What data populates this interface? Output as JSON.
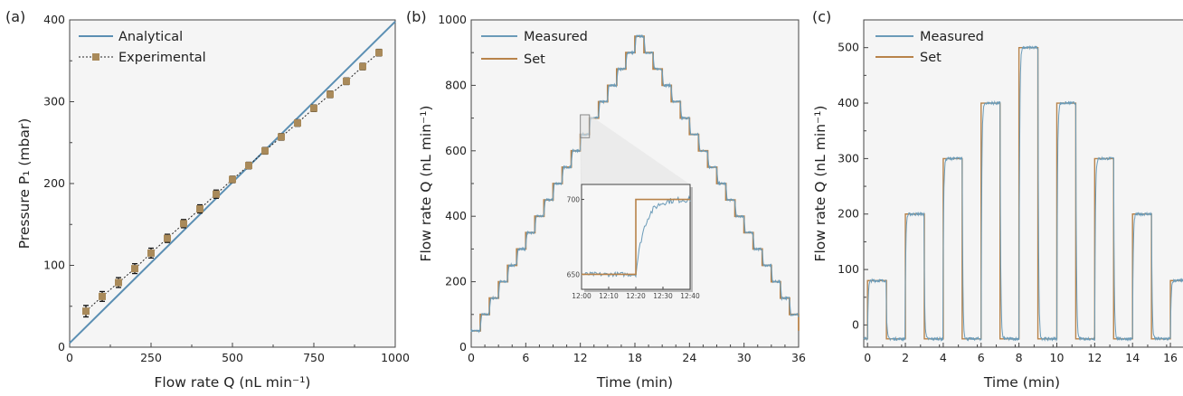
{
  "figure": {
    "panels": [
      "(a)",
      "(b)",
      "(c)"
    ]
  },
  "colors": {
    "analytical": "#5b8fb3",
    "measured": "#6b9bb8",
    "set": "#b8834a",
    "experimental_marker": "#a98a5a",
    "background": "#f5f5f5"
  },
  "chart_data": [
    {
      "panel": "(a)",
      "type": "line",
      "xlabel": "Flow rate Q  (nL min⁻¹)",
      "ylabel": "Pressure P₁ (mbar)",
      "xlim": [
        0,
        1000
      ],
      "ylim": [
        0,
        400
      ],
      "xticks": [
        0,
        250,
        500,
        750,
        1000
      ],
      "yticks": [
        0,
        100,
        200,
        300,
        400
      ],
      "legend_position": "top-left",
      "grid": false,
      "series": [
        {
          "name": "Analytical",
          "kind": "line",
          "x": [
            0,
            1000
          ],
          "y": [
            5,
            398
          ]
        },
        {
          "name": "Experimental",
          "kind": "points-with-errorbars",
          "x": [
            50,
            100,
            150,
            200,
            250,
            300,
            350,
            400,
            450,
            500,
            550,
            600,
            650,
            700,
            750,
            800,
            850,
            900,
            950
          ],
          "y": [
            44,
            62,
            79,
            96,
            115,
            133,
            151,
            169,
            187,
            205,
            222,
            240,
            257,
            274,
            292,
            309,
            325,
            343,
            360
          ],
          "yerr": [
            7,
            6,
            6,
            6,
            6,
            5,
            5,
            5,
            5,
            4,
            4,
            4,
            4,
            4,
            4,
            4,
            4,
            4,
            4
          ]
        }
      ]
    },
    {
      "panel": "(b)",
      "type": "line",
      "xlabel": "Time (min)",
      "ylabel": "Flow rate Q (nL min⁻¹)",
      "xlim": [
        0,
        36
      ],
      "ylim": [
        0,
        1000
      ],
      "xticks": [
        0,
        6,
        12,
        18,
        24,
        30,
        36
      ],
      "yticks": [
        0,
        200,
        400,
        600,
        800,
        1000
      ],
      "legend_position": "top-left",
      "grid": false,
      "step_duration_min": 1,
      "set_levels": [
        50,
        100,
        150,
        200,
        250,
        300,
        350,
        400,
        450,
        500,
        550,
        600,
        650,
        700,
        750,
        800,
        850,
        900,
        950,
        900,
        850,
        800,
        750,
        700,
        650,
        600,
        550,
        500,
        450,
        400,
        350,
        300,
        250,
        200,
        150,
        100,
        50
      ],
      "series": [
        {
          "name": "Measured"
        },
        {
          "name": "Set"
        }
      ],
      "inset": {
        "x_tick_labels": [
          "12:00",
          "12:10",
          "12:20",
          "12:30",
          "12:40"
        ],
        "y_tick_labels": [
          "650",
          "700"
        ],
        "xlim_sec": [
          0,
          40
        ],
        "ylim": [
          640,
          710
        ],
        "set_step_sec": 20,
        "set_from": 650,
        "set_to": 700
      }
    },
    {
      "panel": "(c)",
      "type": "line",
      "xlabel": "Time (min)",
      "ylabel": "Flow rate Q (nL min⁻¹)",
      "xlim": [
        -0.2,
        17
      ],
      "ylim": [
        -40,
        550
      ],
      "xticks": [
        0,
        2,
        4,
        6,
        8,
        10,
        12,
        14,
        16
      ],
      "yticks": [
        0,
        100,
        200,
        300,
        400,
        500
      ],
      "legend_position": "top-left",
      "grid": false,
      "baseline": -25,
      "pulses": [
        {
          "start": 0,
          "end": 1,
          "level": 80
        },
        {
          "start": 2,
          "end": 3,
          "level": 200
        },
        {
          "start": 4,
          "end": 5,
          "level": 300
        },
        {
          "start": 6,
          "end": 7,
          "level": 400
        },
        {
          "start": 8,
          "end": 9,
          "level": 500
        },
        {
          "start": 10,
          "end": 11,
          "level": 400
        },
        {
          "start": 12,
          "end": 13,
          "level": 300
        },
        {
          "start": 14,
          "end": 15,
          "level": 200
        },
        {
          "start": 16,
          "end": 17,
          "level": 80
        }
      ],
      "series": [
        {
          "name": "Measured"
        },
        {
          "name": "Set"
        }
      ]
    }
  ]
}
